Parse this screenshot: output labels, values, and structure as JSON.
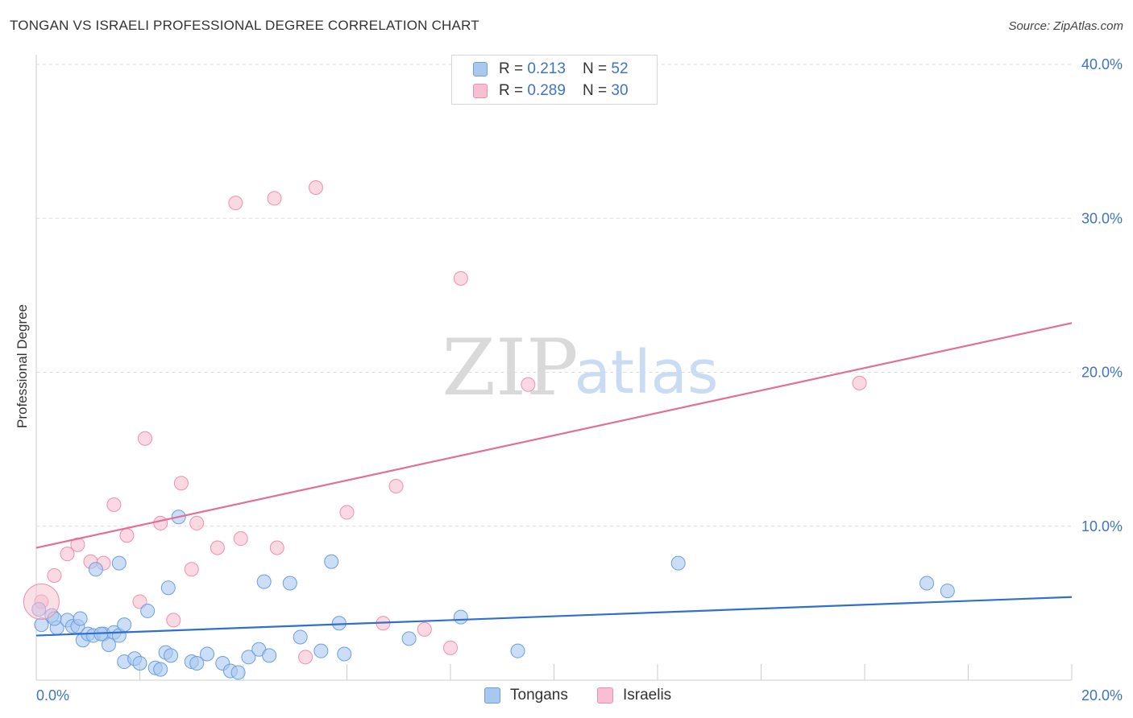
{
  "title": "TONGAN VS ISRAELI PROFESSIONAL DEGREE CORRELATION CHART",
  "source": "Source: ZipAtlas.com",
  "watermark": {
    "zip": "ZIP",
    "atlas": "atlas"
  },
  "colors": {
    "tongans_fill": "#a9c8f0",
    "tongans_stroke": "#6b9fe0",
    "tongans_line": "#2f6fcf",
    "israelis_fill": "#f7bfd0",
    "israelis_stroke": "#ee8fb0",
    "israelis_line": "#e36e98",
    "axis_text": "#3f73c4",
    "grid": "#dddddd"
  },
  "legend_stats": {
    "rows": [
      {
        "r_label": "R = ",
        "r_value": "0.213",
        "n_label": "N = ",
        "n_value": "52",
        "series": "tongans"
      },
      {
        "r_label": "R = ",
        "r_value": "0.289",
        "n_label": "N = ",
        "n_value": "30",
        "series": "israelis"
      }
    ]
  },
  "bottom_legend": {
    "tongans": "Tongans",
    "israelis": "Israelis"
  },
  "chart_data": {
    "type": "scatter",
    "title": "TONGAN VS ISRAELI PROFESSIONAL DEGREE CORRELATION CHART",
    "xlabel": "",
    "ylabel": "Professional Degree",
    "xlim": [
      0,
      20
    ],
    "ylim": [
      0,
      40
    ],
    "x_tick_labels": [
      {
        "value": 0,
        "label": "0.0%"
      },
      {
        "value": 20,
        "label": "20.0%"
      }
    ],
    "y_tick_labels": [
      {
        "value": 10,
        "label": "10.0%"
      },
      {
        "value": 20,
        "label": "20.0%"
      },
      {
        "value": 30,
        "label": "30.0%"
      },
      {
        "value": 40,
        "label": "40.0%"
      }
    ],
    "series": [
      {
        "name": "Tongans",
        "color": "#a9c8f0",
        "points": [
          [
            0.1,
            3.6
          ],
          [
            0.3,
            4.2
          ],
          [
            0.4,
            3.4
          ],
          [
            0.6,
            3.9
          ],
          [
            0.7,
            3.5
          ],
          [
            0.8,
            3.5
          ],
          [
            0.85,
            4.0
          ],
          [
            0.9,
            2.6
          ],
          [
            1.0,
            3.0
          ],
          [
            1.1,
            2.9
          ],
          [
            1.3,
            3.0
          ],
          [
            1.5,
            3.1
          ],
          [
            1.4,
            2.3
          ],
          [
            1.6,
            2.9
          ],
          [
            1.7,
            3.6
          ],
          [
            1.15,
            7.2
          ],
          [
            1.6,
            7.6
          ],
          [
            1.7,
            1.2
          ],
          [
            1.9,
            1.4
          ],
          [
            2.0,
            1.1
          ],
          [
            2.15,
            4.5
          ],
          [
            2.3,
            0.8
          ],
          [
            2.4,
            0.7
          ],
          [
            2.5,
            1.8
          ],
          [
            2.6,
            1.6
          ],
          [
            2.55,
            6.0
          ],
          [
            2.75,
            10.6
          ],
          [
            3.0,
            1.2
          ],
          [
            3.1,
            1.1
          ],
          [
            3.3,
            1.7
          ],
          [
            3.6,
            1.1
          ],
          [
            3.75,
            0.6
          ],
          [
            3.9,
            0.5
          ],
          [
            4.1,
            1.5
          ],
          [
            4.3,
            2.0
          ],
          [
            4.4,
            6.4
          ],
          [
            4.5,
            1.6
          ],
          [
            4.9,
            6.3
          ],
          [
            5.1,
            2.8
          ],
          [
            5.5,
            1.9
          ],
          [
            5.7,
            7.7
          ],
          [
            5.85,
            3.7
          ],
          [
            5.95,
            1.7
          ],
          [
            7.2,
            2.7
          ],
          [
            8.2,
            4.1
          ],
          [
            9.3,
            1.9
          ],
          [
            12.4,
            7.6
          ],
          [
            17.2,
            6.3
          ],
          [
            17.6,
            5.8
          ],
          [
            0.05,
            4.6
          ],
          [
            0.35,
            4.0
          ],
          [
            1.25,
            3.0
          ]
        ]
      },
      {
        "name": "Israelis",
        "color": "#f7bfd0",
        "points": [
          [
            0.1,
            5.1
          ],
          [
            0.35,
            6.8
          ],
          [
            0.6,
            8.2
          ],
          [
            0.8,
            8.8
          ],
          [
            1.05,
            7.7
          ],
          [
            1.3,
            7.6
          ],
          [
            1.5,
            11.4
          ],
          [
            1.75,
            9.4
          ],
          [
            2.0,
            5.1
          ],
          [
            2.1,
            15.7
          ],
          [
            2.4,
            10.2
          ],
          [
            2.65,
            3.9
          ],
          [
            2.8,
            12.8
          ],
          [
            3.0,
            7.2
          ],
          [
            3.1,
            10.2
          ],
          [
            3.5,
            8.6
          ],
          [
            3.85,
            31.0
          ],
          [
            3.95,
            9.2
          ],
          [
            4.6,
            31.3
          ],
          [
            4.65,
            8.6
          ],
          [
            5.2,
            1.5
          ],
          [
            5.4,
            32.0
          ],
          [
            6.0,
            10.9
          ],
          [
            6.7,
            3.7
          ],
          [
            6.95,
            12.6
          ],
          [
            7.5,
            3.3
          ],
          [
            8.0,
            2.1
          ],
          [
            8.2,
            26.1
          ],
          [
            9.5,
            19.2
          ],
          [
            15.9,
            19.3
          ]
        ]
      }
    ],
    "trend_lines": [
      {
        "series": "Tongans",
        "start": [
          0,
          2.9
        ],
        "end": [
          20,
          5.4
        ]
      },
      {
        "series": "Israelis",
        "start": [
          0,
          8.6
        ],
        "end": [
          20,
          23.2
        ]
      }
    ]
  }
}
